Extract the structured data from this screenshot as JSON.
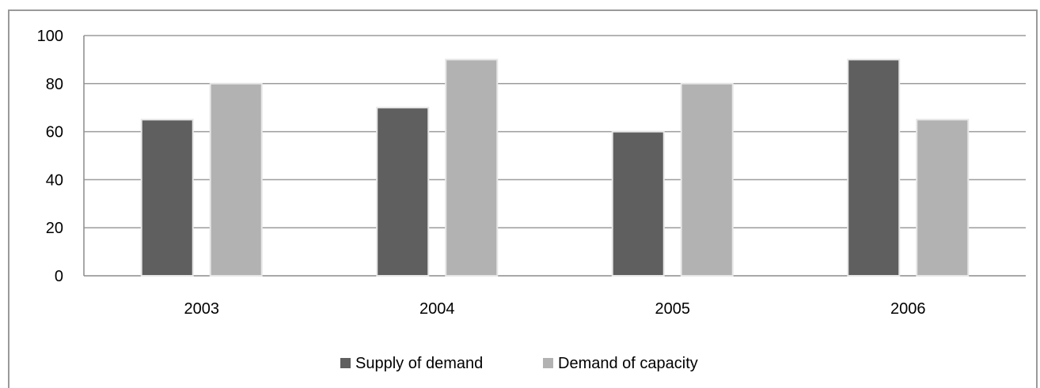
{
  "chart_data": {
    "type": "bar",
    "categories": [
      "2003",
      "2004",
      "2005",
      "2006"
    ],
    "series": [
      {
        "name": "Supply of demand",
        "values": [
          65,
          70,
          60,
          90
        ],
        "color": "#5f5f5f"
      },
      {
        "name": "Demand of capacity",
        "values": [
          80,
          90,
          80,
          65
        ],
        "color": "#b2b2b2"
      }
    ],
    "yticks": [
      "0",
      "20",
      "40",
      "60",
      "80",
      "100"
    ],
    "ylim": [
      0,
      100
    ],
    "grid": true,
    "legend_position": "bottom"
  }
}
